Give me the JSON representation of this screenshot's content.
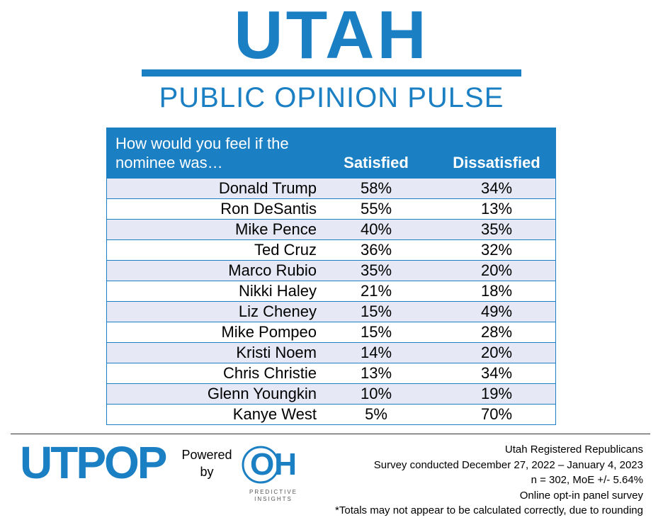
{
  "header": {
    "title": "UTAH",
    "subtitle": "PUBLIC OPINION PULSE"
  },
  "table": {
    "columns": [
      "How would you feel if the nominee was…",
      "Satisfied",
      "Dissatisfied"
    ],
    "rows": [
      [
        "Donald Trump",
        "58%",
        "34%"
      ],
      [
        "Ron DeSantis",
        "55%",
        "13%"
      ],
      [
        "Mike Pence",
        "40%",
        "35%"
      ],
      [
        "Ted Cruz",
        "36%",
        "32%"
      ],
      [
        "Marco Rubio",
        "35%",
        "20%"
      ],
      [
        "Nikki Haley",
        "21%",
        "18%"
      ],
      [
        "Liz Cheney",
        "15%",
        "49%"
      ],
      [
        "Mike Pompeo",
        "15%",
        "28%"
      ],
      [
        "Kristi Noem",
        "14%",
        "20%"
      ],
      [
        "Chris Christie",
        "13%",
        "34%"
      ],
      [
        "Glenn Youngkin",
        "10%",
        "19%"
      ],
      [
        "Kanye West",
        "5%",
        "70%"
      ]
    ]
  },
  "footer": {
    "logo": "UTPOP",
    "powered_by": "Powered by",
    "partner_logo": "OH",
    "partner_name": "PREDICTIVE INSIGHTS",
    "notes": [
      "Utah Registered Republicans",
      "Survey conducted December 27, 2022 – January 4, 2023",
      "n = 302, MoE +/- 5.64%",
      "Online opt-in panel survey",
      "*Totals may not appear to be calculated correctly, due to rounding"
    ]
  }
}
